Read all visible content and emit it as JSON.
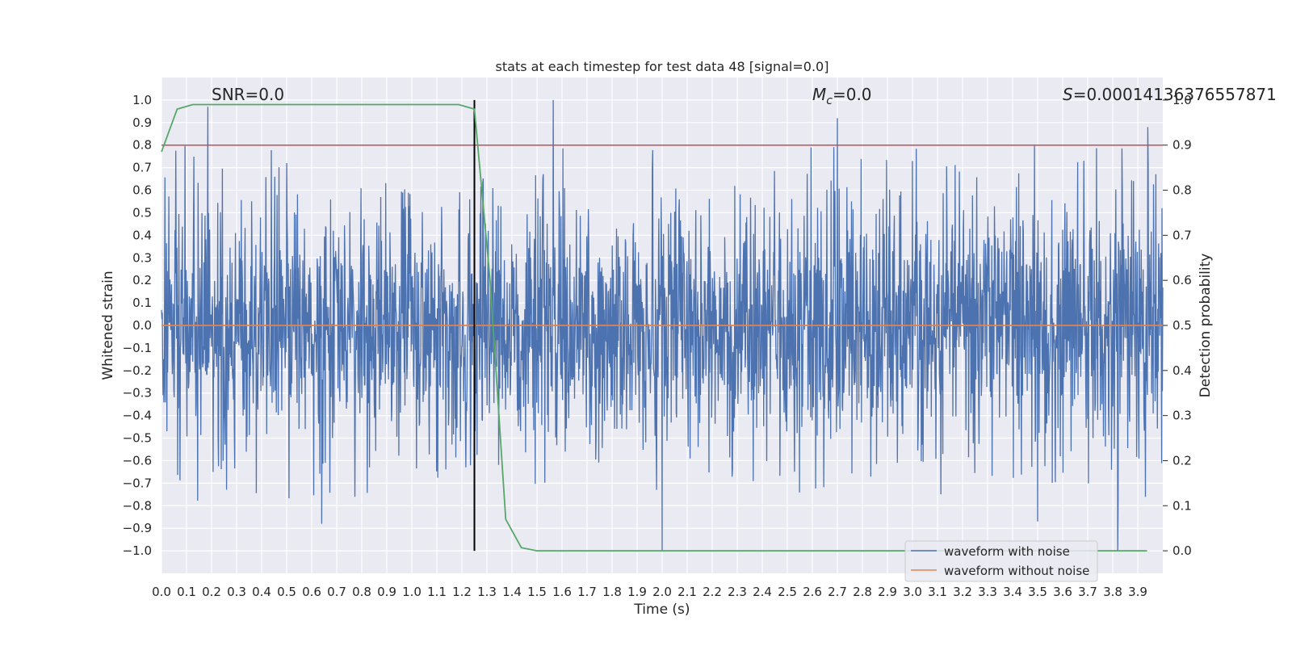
{
  "chart_data": {
    "type": "line",
    "title": "stats at each timestep for test data 48 [signal=0.0]",
    "xlabel": "Time (s)",
    "ylabel": "Whitened strain",
    "y2label": "Detection probability",
    "xlim": [
      0.0,
      4.0
    ],
    "ylim": [
      -1.1,
      1.1
    ],
    "y2lim": [
      -0.05,
      1.05
    ],
    "x_ticks": [
      "0.0",
      "0.1",
      "0.2",
      "0.3",
      "0.4",
      "0.5",
      "0.6",
      "0.7",
      "0.8",
      "0.9",
      "1.0",
      "1.1",
      "1.2",
      "1.3",
      "1.4",
      "1.5",
      "1.6",
      "1.7",
      "1.8",
      "1.9",
      "2.0",
      "2.1",
      "2.2",
      "2.3",
      "2.4",
      "2.5",
      "2.6",
      "2.7",
      "2.8",
      "2.9",
      "3.0",
      "3.1",
      "3.2",
      "3.3",
      "3.4",
      "3.5",
      "3.6",
      "3.7",
      "3.8",
      "3.9"
    ],
    "y_ticks": [
      "1.0",
      "0.9",
      "0.8",
      "0.7",
      "0.6",
      "0.5",
      "0.4",
      "0.3",
      "0.2",
      "0.1",
      "0.0",
      "−0.1",
      "−0.2",
      "−0.3",
      "−0.4",
      "−0.5",
      "−0.6",
      "−0.7",
      "−0.8",
      "−0.9",
      "−1.0"
    ],
    "y2_ticks": [
      "1.0",
      "0.9",
      "0.8",
      "0.7",
      "0.6",
      "0.5",
      "0.4",
      "0.3",
      "0.2",
      "0.1",
      "0.0"
    ],
    "annotations": {
      "snr": "SNR=0.0",
      "mc_symbol": "M",
      "mc_sub": "c",
      "mc_value": "=0.0",
      "s_symbol": "S",
      "s_value": "=0.00014136376557871"
    },
    "grid": true,
    "legend_placement": "lower-right",
    "series": [
      {
        "name": "waveform with noise",
        "color": "#4c72b0",
        "axis": "left",
        "description": "noisy whitened strain sampled densely over 0–4 s, amplitudes roughly within ±0.4 with spikes up to ±1.0",
        "spike_peaks": [
          {
            "x": 0.185,
            "y": 0.97
          },
          {
            "x": 1.565,
            "y": 1.0
          },
          {
            "x": 2.7,
            "y": 0.92
          },
          {
            "x": 3.94,
            "y": 0.88
          },
          {
            "x": 2.0,
            "y": -1.0
          },
          {
            "x": 3.82,
            "y": -1.0
          },
          {
            "x": 0.64,
            "y": -0.88
          },
          {
            "x": 3.5,
            "y": -0.87
          }
        ]
      },
      {
        "name": "waveform without noise",
        "color": "#dd8452",
        "axis": "left",
        "x": [
          0.0,
          4.0
        ],
        "y": [
          0.0,
          0.0
        ]
      },
      {
        "color": "#55a868",
        "axis": "right",
        "x": [
          0.0,
          0.0625,
          0.125,
          0.1875,
          0.25,
          0.5,
          0.75,
          1.0,
          1.1875,
          1.25,
          1.3125,
          1.375,
          1.4375,
          1.5,
          1.75,
          2.0,
          3.0,
          3.9375
        ],
        "y": [
          0.885,
          0.98,
          0.99,
          0.99,
          0.99,
          0.99,
          0.99,
          0.99,
          0.99,
          0.98,
          0.6,
          0.07,
          0.007,
          0.0,
          0.0,
          0.0,
          0.0,
          0.0
        ]
      }
    ],
    "threshold": {
      "axis": "right",
      "y": 0.9,
      "color": "#c44e52"
    },
    "marker_line": {
      "x": 1.25,
      "y_from": -1.0,
      "y_to": 1.0,
      "color": "#000000"
    }
  }
}
